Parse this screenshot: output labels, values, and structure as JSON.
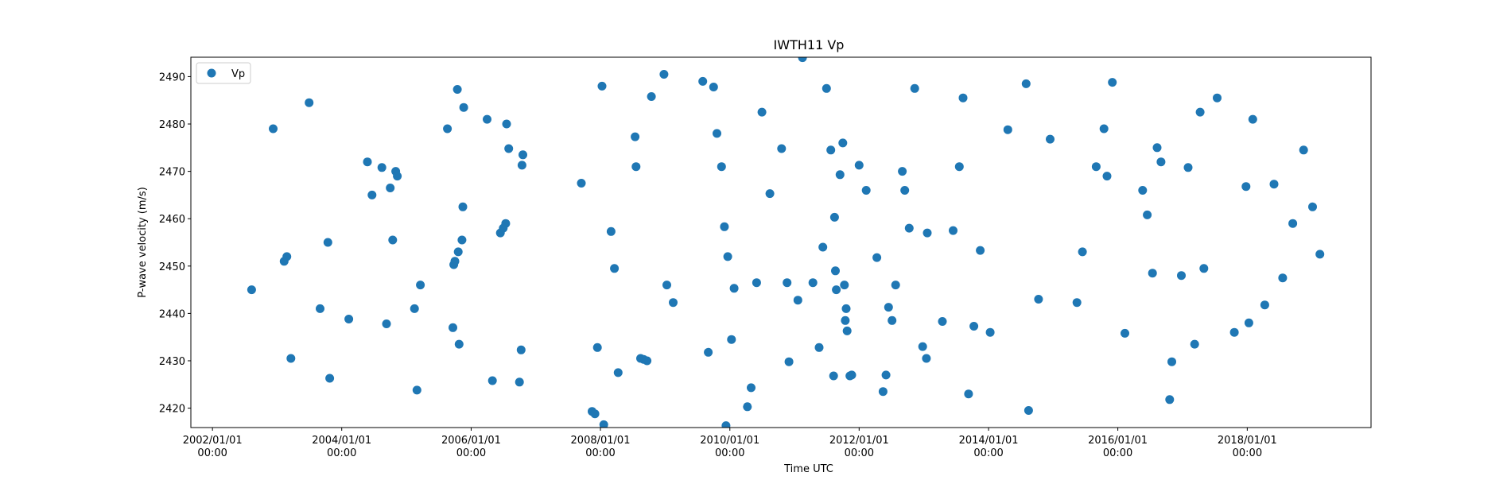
{
  "chart_data": {
    "type": "scatter",
    "title": "IWTH11 Vp",
    "xlabel": "Time UTC",
    "ylabel": "P-wave velocity (m/s)",
    "xlim": [
      "2001-09-01",
      "2019-12-01"
    ],
    "ylim": [
      2415.9,
      2494.1
    ],
    "x_ticks": [
      {
        "value": "2002-01-01",
        "line1": "2002/01/01",
        "line2": "00:00"
      },
      {
        "value": "2004-01-01",
        "line1": "2004/01/01",
        "line2": "00:00"
      },
      {
        "value": "2006-01-01",
        "line1": "2006/01/01",
        "line2": "00:00"
      },
      {
        "value": "2008-01-01",
        "line1": "2008/01/01",
        "line2": "00:00"
      },
      {
        "value": "2010-01-01",
        "line1": "2010/01/01",
        "line2": "00:00"
      },
      {
        "value": "2012-01-01",
        "line1": "2012/01/01",
        "line2": "00:00"
      },
      {
        "value": "2014-01-01",
        "line1": "2014/01/01",
        "line2": "00:00"
      },
      {
        "value": "2016-01-01",
        "line1": "2016/01/01",
        "line2": "00:00"
      },
      {
        "value": "2018-01-01",
        "line1": "2018/01/01",
        "line2": "00:00"
      }
    ],
    "y_ticks": [
      2420,
      2430,
      2440,
      2450,
      2460,
      2470,
      2480,
      2490
    ],
    "grid": false,
    "legend": {
      "position": "top-left",
      "entries": [
        "Vp"
      ]
    },
    "colors": {
      "series": "#1f77b4"
    },
    "series": [
      {
        "name": "Vp",
        "points": [
          [
            "2002-08-10",
            2445
          ],
          [
            "2002-12-10",
            2479
          ],
          [
            "2003-02-10",
            2451
          ],
          [
            "2003-02-25",
            2452
          ],
          [
            "2003-03-20",
            2430.5
          ],
          [
            "2003-07-01",
            2484.5
          ],
          [
            "2003-09-01",
            2441
          ],
          [
            "2003-10-15",
            2455
          ],
          [
            "2003-10-25",
            2426.3
          ],
          [
            "2004-02-10",
            2438.8
          ],
          [
            "2004-06-20",
            2465
          ],
          [
            "2004-05-25",
            2472
          ],
          [
            "2004-08-15",
            2470.8
          ],
          [
            "2004-10-01",
            2466.5
          ],
          [
            "2004-11-01",
            2470
          ],
          [
            "2004-11-10",
            2469
          ],
          [
            "2004-10-15",
            2455.5
          ],
          [
            "2004-09-10",
            2437.8
          ],
          [
            "2005-02-15",
            2441
          ],
          [
            "2005-03-20",
            2446
          ],
          [
            "2005-03-01",
            2423.8
          ],
          [
            "2005-08-20",
            2479
          ],
          [
            "2005-09-20",
            2437
          ],
          [
            "2005-10-15",
            2487.3
          ],
          [
            "2005-10-25",
            2433.5
          ],
          [
            "2005-11-20",
            2483.5
          ],
          [
            "2005-11-15",
            2462.5
          ],
          [
            "2005-11-10",
            2455.5
          ],
          [
            "2005-10-20",
            2453
          ],
          [
            "2005-10-01",
            2451
          ],
          [
            "2005-09-25",
            2450.3
          ],
          [
            "2006-04-01",
            2481
          ],
          [
            "2006-05-01",
            2425.8
          ],
          [
            "2006-06-15",
            2457
          ],
          [
            "2006-07-15",
            2459
          ],
          [
            "2006-07-01",
            2458
          ],
          [
            "2006-07-20",
            2480
          ],
          [
            "2006-08-01",
            2474.8
          ],
          [
            "2006-10-20",
            2473.5
          ],
          [
            "2006-10-15",
            2471.3
          ],
          [
            "2006-10-10",
            2432.3
          ],
          [
            "2006-10-01",
            2425.5
          ],
          [
            "2007-09-15",
            2467.5
          ],
          [
            "2007-12-15",
            2432.8
          ],
          [
            "2008-01-10",
            2488
          ],
          [
            "2008-03-01",
            2457.3
          ],
          [
            "2008-03-20",
            2449.5
          ],
          [
            "2008-04-10",
            2427.5
          ],
          [
            "2007-11-15",
            2419.3
          ],
          [
            "2007-12-01",
            2418.8
          ],
          [
            "2008-01-20",
            2416.5
          ],
          [
            "2008-07-20",
            2471
          ],
          [
            "2008-07-15",
            2477.3
          ],
          [
            "2008-10-15",
            2485.8
          ],
          [
            "2008-12-25",
            2490.5
          ],
          [
            "2008-08-15",
            2430.5
          ],
          [
            "2008-09-20",
            2430
          ],
          [
            "2008-09-01",
            2430.3
          ],
          [
            "2009-01-10",
            2446
          ],
          [
            "2009-02-15",
            2442.3
          ],
          [
            "2009-08-01",
            2489
          ],
          [
            "2009-09-01",
            2431.8
          ],
          [
            "2009-10-01",
            2487.8
          ],
          [
            "2009-10-20",
            2478
          ],
          [
            "2009-11-15",
            2471
          ],
          [
            "2009-12-01",
            2458.3
          ],
          [
            "2009-12-20",
            2452
          ],
          [
            "2009-12-10",
            2416.3
          ],
          [
            "2010-01-10",
            2434.5
          ],
          [
            "2010-01-25",
            2445.3
          ],
          [
            "2010-04-10",
            2420.3
          ],
          [
            "2010-05-01",
            2424.3
          ],
          [
            "2010-06-01",
            2446.5
          ],
          [
            "2010-07-01",
            2482.5
          ],
          [
            "2010-08-15",
            2465.3
          ],
          [
            "2010-10-20",
            2474.8
          ],
          [
            "2010-11-20",
            2446.5
          ],
          [
            "2010-12-01",
            2429.8
          ],
          [
            "2011-01-20",
            2442.8
          ],
          [
            "2011-02-15",
            2494
          ],
          [
            "2011-04-15",
            2446.5
          ],
          [
            "2011-05-20",
            2432.8
          ],
          [
            "2011-06-10",
            2454
          ],
          [
            "2011-07-01",
            2487.5
          ],
          [
            "2011-07-25",
            2474.5
          ],
          [
            "2011-08-20",
            2449
          ],
          [
            "2011-08-25",
            2445
          ],
          [
            "2011-08-15",
            2460.3
          ],
          [
            "2011-08-10",
            2426.8
          ],
          [
            "2011-09-15",
            2469.3
          ],
          [
            "2011-10-01",
            2476
          ],
          [
            "2011-10-20",
            2441
          ],
          [
            "2011-10-10",
            2446
          ],
          [
            "2011-10-25",
            2436.3
          ],
          [
            "2011-10-15",
            2438.5
          ],
          [
            "2011-11-10",
            2426.8
          ],
          [
            "2011-11-20",
            2427
          ],
          [
            "2012-01-01",
            2471.3
          ],
          [
            "2012-02-10",
            2466
          ],
          [
            "2012-04-10",
            2451.8
          ],
          [
            "2012-05-15",
            2423.5
          ],
          [
            "2012-06-01",
            2427
          ],
          [
            "2012-06-15",
            2441.3
          ],
          [
            "2012-07-05",
            2438.5
          ],
          [
            "2012-07-25",
            2446
          ],
          [
            "2012-09-15",
            2466
          ],
          [
            "2012-09-01",
            2470
          ],
          [
            "2012-10-10",
            2458
          ],
          [
            "2012-11-10",
            2487.5
          ],
          [
            "2012-12-25",
            2433
          ],
          [
            "2013-01-15",
            2430.5
          ],
          [
            "2013-01-20",
            2457
          ],
          [
            "2013-04-15",
            2438.3
          ],
          [
            "2013-06-15",
            2457.5
          ],
          [
            "2013-07-20",
            2471
          ],
          [
            "2013-08-10",
            2485.5
          ],
          [
            "2013-09-10",
            2423
          ],
          [
            "2013-10-10",
            2437.3
          ],
          [
            "2013-11-15",
            2453.3
          ],
          [
            "2014-01-10",
            2436
          ],
          [
            "2014-04-20",
            2478.8
          ],
          [
            "2014-08-01",
            2488.5
          ],
          [
            "2014-08-15",
            2419.5
          ],
          [
            "2014-10-10",
            2443
          ],
          [
            "2014-12-15",
            2476.8
          ],
          [
            "2015-05-15",
            2442.3
          ],
          [
            "2015-06-15",
            2453
          ],
          [
            "2015-09-01",
            2471
          ],
          [
            "2015-10-15",
            2479
          ],
          [
            "2015-11-01",
            2469
          ],
          [
            "2015-12-01",
            2488.8
          ],
          [
            "2016-02-10",
            2435.8
          ],
          [
            "2016-05-20",
            2466
          ],
          [
            "2016-06-15",
            2460.8
          ],
          [
            "2016-07-15",
            2448.5
          ],
          [
            "2016-08-10",
            2475
          ],
          [
            "2016-09-01",
            2472
          ],
          [
            "2016-10-20",
            2421.8
          ],
          [
            "2016-11-01",
            2429.8
          ],
          [
            "2016-12-25",
            2448
          ],
          [
            "2017-02-01",
            2470.8
          ],
          [
            "2017-03-10",
            2433.5
          ],
          [
            "2017-04-10",
            2482.5
          ],
          [
            "2017-05-01",
            2449.5
          ],
          [
            "2017-07-15",
            2485.5
          ],
          [
            "2017-10-20",
            2436
          ],
          [
            "2017-12-25",
            2466.8
          ],
          [
            "2018-01-10",
            2438
          ],
          [
            "2018-02-01",
            2481
          ],
          [
            "2018-04-10",
            2441.8
          ],
          [
            "2018-06-01",
            2467.3
          ],
          [
            "2018-07-20",
            2447.5
          ],
          [
            "2018-09-15",
            2459
          ],
          [
            "2018-11-15",
            2474.5
          ],
          [
            "2019-01-05",
            2462.5
          ],
          [
            "2019-02-15",
            2452.5
          ]
        ]
      }
    ]
  }
}
